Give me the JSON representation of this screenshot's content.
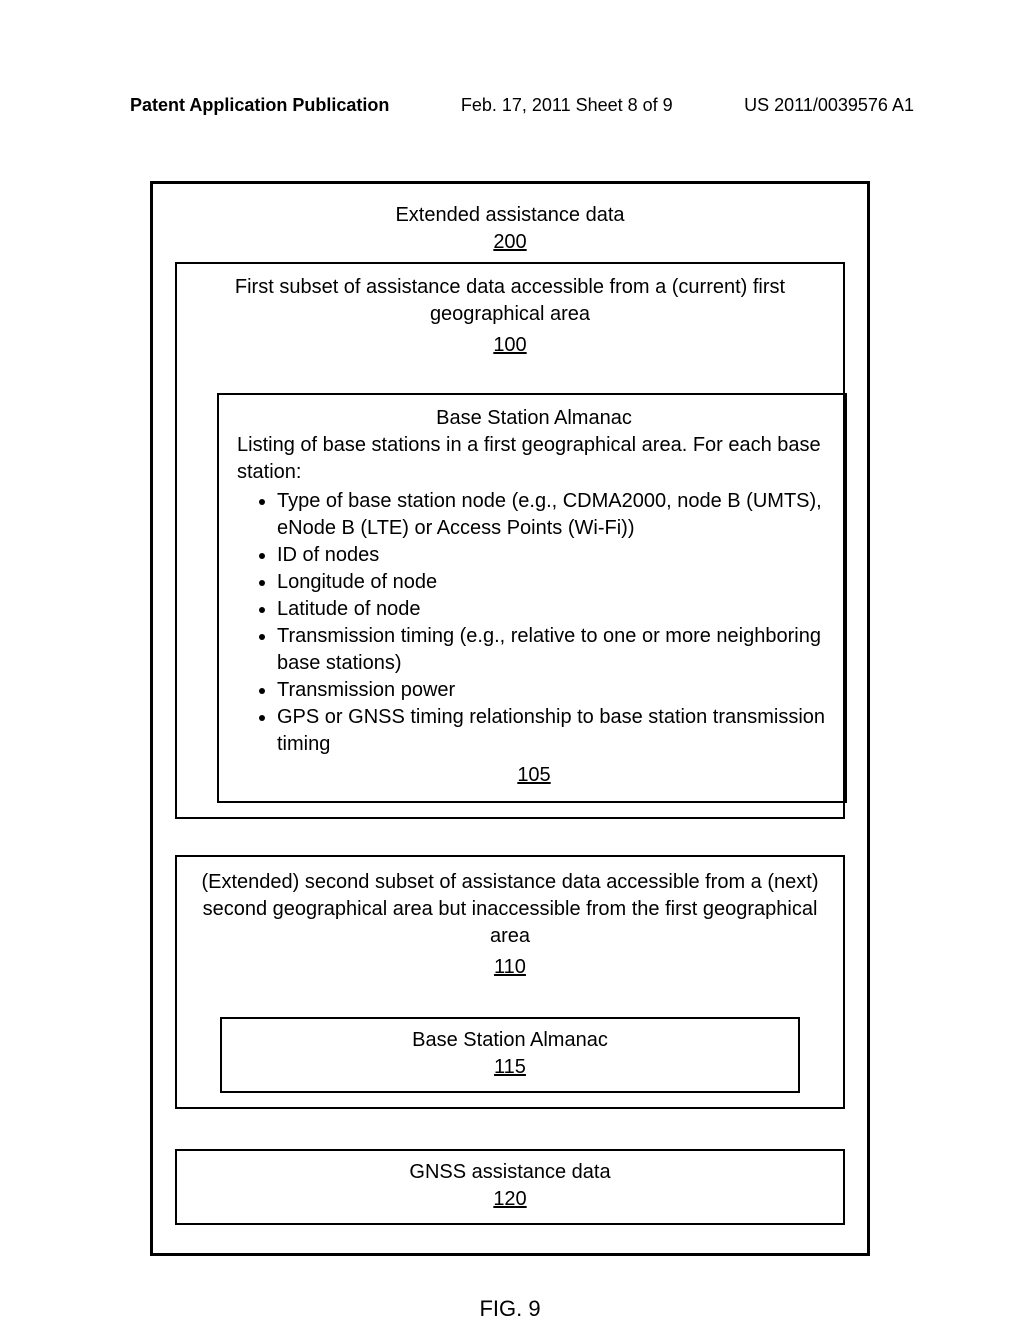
{
  "header": {
    "left": "Patent Application Publication",
    "center": "Feb. 17, 2011  Sheet 8 of 9",
    "right": "US 2011/0039576 A1"
  },
  "outer": {
    "title": "Extended assistance data",
    "ref": "200"
  },
  "firstSubset": {
    "text": "First subset of assistance data accessible from a (current) first geographical area",
    "ref": "100"
  },
  "almanac": {
    "title": "Base Station Almanac",
    "intro": "Listing of base stations in a first geographical area. For each base station:",
    "bullets": [
      "Type of base station node (e.g., CDMA2000, node B (UMTS), eNode B (LTE) or Access Points (Wi-Fi))",
      "ID of nodes",
      "Longitude of node",
      "Latitude of node",
      "Transmission timing (e.g., relative to one or more neighboring base stations)",
      "Transmission power",
      "GPS or GNSS timing relationship to base station transmission timing"
    ],
    "ref": "105"
  },
  "secondSubset": {
    "text": "(Extended) second subset of assistance data accessible from a (next) second geographical area but inaccessible from the first geographical area",
    "ref": "110"
  },
  "subAlmanac": {
    "title": "Base Station Almanac",
    "ref": "115"
  },
  "gnss": {
    "title": "GNSS assistance data",
    "ref": "120"
  },
  "figCaption": "FIG. 9"
}
